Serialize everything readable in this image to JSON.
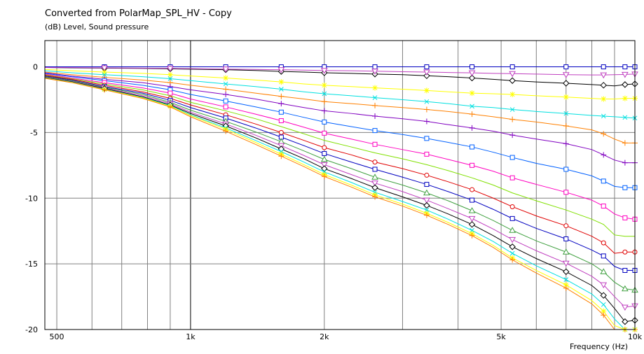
{
  "title": "Converted from PolarMap_SPL_HV - Copy",
  "subtitle": "(dB)  Level, Sound pressure",
  "chart_data": {
    "type": "line",
    "title": "Converted from PolarMap_SPL_HV - Copy",
    "ylabel": "(dB)  Level, Sound pressure",
    "xlabel": "Frequency  (Hz)",
    "xscale": "log",
    "xlim": [
      470,
      10000
    ],
    "ylim": [
      -20,
      2
    ],
    "grid": true,
    "x_ticks": [
      {
        "value": 500,
        "label": "500"
      },
      {
        "value": 1000,
        "label": "1k"
      },
      {
        "value": 2000,
        "label": "2k"
      },
      {
        "value": 5000,
        "label": "5k"
      },
      {
        "value": 10000,
        "label": "10k"
      }
    ],
    "y_ticks": [
      {
        "value": 0,
        "label": "0"
      },
      {
        "value": -5,
        "label": "-5"
      },
      {
        "value": -10,
        "label": "-10"
      },
      {
        "value": -15,
        "label": "-15"
      },
      {
        "value": -20,
        "label": "-20"
      }
    ],
    "x": [
      470,
      540,
      640,
      780,
      900,
      1000,
      1200,
      1400,
      1600,
      1800,
      2000,
      2300,
      2600,
      3000,
      3400,
      3800,
      4300,
      4800,
      5300,
      6000,
      7000,
      8000,
      8500,
      9000,
      9500,
      10000
    ],
    "series": [
      {
        "color": "#0000c0",
        "marker": "square",
        "values": [
          0,
          0,
          0,
          0,
          0,
          0,
          0,
          0,
          0,
          0,
          0,
          0,
          0,
          0,
          0,
          0,
          0,
          0,
          0,
          0,
          0,
          0,
          0,
          0,
          0,
          0
        ]
      },
      {
        "color": "#000000",
        "marker": "diamond",
        "values": [
          -0.05,
          -0.08,
          -0.1,
          -0.12,
          -0.15,
          -0.18,
          -0.22,
          -0.28,
          -0.35,
          -0.4,
          -0.45,
          -0.5,
          -0.55,
          -0.6,
          -0.68,
          -0.75,
          -0.85,
          -0.95,
          -1.05,
          -1.15,
          -1.25,
          -1.35,
          -1.4,
          -1.45,
          -1.35,
          -1.3
        ]
      },
      {
        "color": "#c040c0",
        "marker": "triangle-down",
        "values": [
          -0.05,
          -0.06,
          -0.08,
          -0.1,
          -0.12,
          -0.14,
          -0.17,
          -0.2,
          -0.22,
          -0.25,
          -0.28,
          -0.3,
          -0.33,
          -0.37,
          -0.4,
          -0.43,
          -0.46,
          -0.5,
          -0.52,
          -0.55,
          -0.6,
          -0.62,
          -0.62,
          -0.6,
          -0.58,
          -0.55
        ]
      },
      {
        "color": "#ffff00",
        "marker": "star",
        "values": [
          -0.2,
          -0.3,
          -0.4,
          -0.5,
          -0.6,
          -0.7,
          -0.85,
          -1.0,
          -1.15,
          -1.3,
          -1.4,
          -1.5,
          -1.6,
          -1.7,
          -1.8,
          -1.9,
          -2.0,
          -2.05,
          -2.1,
          -2.2,
          -2.3,
          -2.4,
          -2.45,
          -2.45,
          -2.4,
          -2.4
        ]
      },
      {
        "color": "#00e0e0",
        "marker": "x",
        "values": [
          -0.3,
          -0.45,
          -0.6,
          -0.75,
          -0.9,
          -1.05,
          -1.3,
          -1.5,
          -1.7,
          -1.9,
          -2.05,
          -2.2,
          -2.35,
          -2.5,
          -2.65,
          -2.8,
          -3.0,
          -3.1,
          -3.25,
          -3.4,
          -3.55,
          -3.7,
          -3.75,
          -3.8,
          -3.85,
          -3.9
        ]
      },
      {
        "color": "#ff8000",
        "marker": "plus",
        "values": [
          -0.4,
          -0.6,
          -0.8,
          -1.0,
          -1.2,
          -1.4,
          -1.7,
          -2.0,
          -2.25,
          -2.45,
          -2.65,
          -2.8,
          -2.95,
          -3.1,
          -3.25,
          -3.4,
          -3.6,
          -3.8,
          -4.0,
          -4.2,
          -4.5,
          -4.8,
          -5.1,
          -5.5,
          -5.8,
          -5.8
        ]
      },
      {
        "color": "#8000c0",
        "marker": "plus",
        "values": [
          -0.45,
          -0.7,
          -0.95,
          -1.2,
          -1.5,
          -1.75,
          -2.1,
          -2.45,
          -2.8,
          -3.1,
          -3.35,
          -3.55,
          -3.75,
          -3.95,
          -4.15,
          -4.4,
          -4.65,
          -4.9,
          -5.2,
          -5.5,
          -5.85,
          -6.3,
          -6.7,
          -7.1,
          -7.3,
          -7.3
        ]
      },
      {
        "color": "#0060ff",
        "marker": "square",
        "values": [
          -0.5,
          -0.75,
          -1.05,
          -1.4,
          -1.75,
          -2.1,
          -2.6,
          -3.05,
          -3.45,
          -3.85,
          -4.2,
          -4.55,
          -4.85,
          -5.15,
          -5.45,
          -5.75,
          -6.1,
          -6.5,
          -6.9,
          -7.35,
          -7.8,
          -8.3,
          -8.7,
          -9.1,
          -9.2,
          -9.2
        ]
      },
      {
        "color": "#ff00c0",
        "marker": "square",
        "values": [
          -0.55,
          -0.85,
          -1.2,
          -1.6,
          -2.0,
          -2.45,
          -3.05,
          -3.6,
          -4.1,
          -4.6,
          -5.05,
          -5.5,
          -5.9,
          -6.3,
          -6.65,
          -7.05,
          -7.5,
          -7.95,
          -8.45,
          -8.95,
          -9.55,
          -10.15,
          -10.6,
          -11.2,
          -11.5,
          -11.6
        ]
      },
      {
        "color": "#80e000",
        "marker": "none",
        "values": [
          -0.6,
          -0.9,
          -1.3,
          -1.75,
          -2.2,
          -2.7,
          -3.35,
          -3.95,
          -4.55,
          -5.1,
          -5.6,
          -6.1,
          -6.55,
          -7.0,
          -7.45,
          -7.9,
          -8.45,
          -9.0,
          -9.6,
          -10.2,
          -10.9,
          -11.6,
          -12.0,
          -12.8,
          -12.9,
          -12.9
        ]
      },
      {
        "color": "#e00000",
        "marker": "circle",
        "values": [
          -0.65,
          -0.95,
          -1.4,
          -1.9,
          -2.4,
          -2.9,
          -3.65,
          -4.35,
          -5.0,
          -5.6,
          -6.15,
          -6.7,
          -7.25,
          -7.75,
          -8.25,
          -8.75,
          -9.35,
          -10.0,
          -10.65,
          -11.35,
          -12.1,
          -12.9,
          -13.4,
          -14.2,
          -14.1,
          -14.1
        ]
      },
      {
        "color": "#0000c0",
        "marker": "square",
        "values": [
          -0.7,
          -1.0,
          -1.5,
          -2.0,
          -2.55,
          -3.1,
          -3.9,
          -4.65,
          -5.35,
          -6.0,
          -6.6,
          -7.25,
          -7.8,
          -8.4,
          -8.95,
          -9.5,
          -10.15,
          -10.85,
          -11.55,
          -12.3,
          -13.1,
          -13.95,
          -14.4,
          -15.2,
          -15.5,
          -15.5
        ]
      },
      {
        "color": "#40a040",
        "marker": "triangle-up",
        "values": [
          -0.75,
          -1.05,
          -1.55,
          -2.1,
          -2.7,
          -3.3,
          -4.15,
          -4.95,
          -5.7,
          -6.4,
          -7.05,
          -7.75,
          -8.4,
          -9.0,
          -9.6,
          -10.2,
          -10.95,
          -11.7,
          -12.45,
          -13.25,
          -14.1,
          -15.0,
          -15.6,
          -16.4,
          -16.9,
          -17.0
        ]
      },
      {
        "color": "#c040c0",
        "marker": "triangle-down",
        "values": [
          -0.8,
          -1.1,
          -1.6,
          -2.2,
          -2.8,
          -3.45,
          -4.35,
          -5.2,
          -6.0,
          -6.75,
          -7.45,
          -8.2,
          -8.85,
          -9.5,
          -10.15,
          -10.8,
          -11.55,
          -12.35,
          -13.15,
          -14.0,
          -14.95,
          -15.95,
          -16.6,
          -17.5,
          -18.3,
          -18.2
        ]
      },
      {
        "color": "#000000",
        "marker": "diamond",
        "values": [
          -0.82,
          -1.13,
          -1.65,
          -2.28,
          -2.9,
          -3.55,
          -4.5,
          -5.4,
          -6.25,
          -7.0,
          -7.75,
          -8.5,
          -9.2,
          -9.9,
          -10.55,
          -11.2,
          -12.0,
          -12.85,
          -13.7,
          -14.6,
          -15.6,
          -16.65,
          -17.4,
          -18.4,
          -19.4,
          -19.3
        ]
      },
      {
        "color": "#00e0e0",
        "marker": "x",
        "values": [
          -0.85,
          -1.16,
          -1.7,
          -2.33,
          -2.95,
          -3.65,
          -4.65,
          -5.6,
          -6.45,
          -7.25,
          -8.0,
          -8.8,
          -9.55,
          -10.25,
          -10.9,
          -11.6,
          -12.45,
          -13.3,
          -14.2,
          -15.15,
          -16.2,
          -17.3,
          -18.1,
          -19.2,
          -20.0,
          -20.0
        ]
      },
      {
        "color": "#ffff00",
        "marker": "star",
        "values": [
          -0.86,
          -1.18,
          -1.72,
          -2.36,
          -3.0,
          -3.7,
          -4.75,
          -5.75,
          -6.65,
          -7.45,
          -8.2,
          -9.0,
          -9.75,
          -10.45,
          -11.15,
          -11.85,
          -12.7,
          -13.6,
          -14.55,
          -15.5,
          -16.6,
          -17.8,
          -18.6,
          -19.7,
          -20.0,
          -20.0
        ]
      },
      {
        "color": "#ff8000",
        "marker": "plus",
        "values": [
          -0.88,
          -1.2,
          -1.75,
          -2.4,
          -3.05,
          -3.8,
          -4.9,
          -5.9,
          -6.8,
          -7.6,
          -8.35,
          -9.15,
          -9.9,
          -10.6,
          -11.3,
          -12.0,
          -12.85,
          -13.75,
          -14.7,
          -15.7,
          -16.85,
          -18.05,
          -18.9,
          -20.0,
          -20.0,
          -20.0
        ]
      }
    ]
  }
}
